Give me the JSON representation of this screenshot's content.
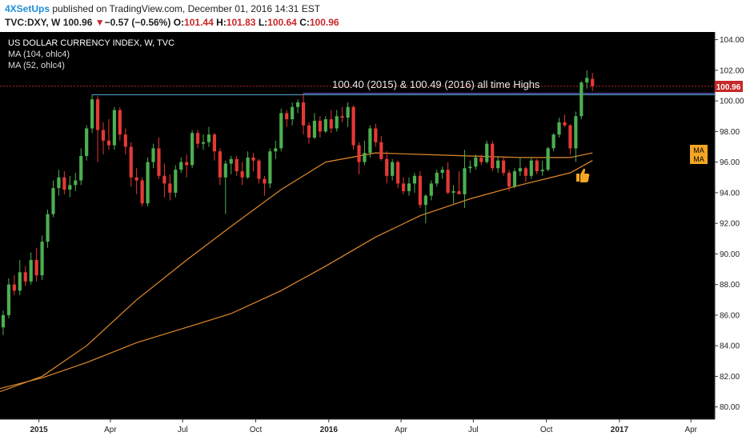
{
  "header": {
    "author": "4XSetUps",
    "published_text": "published on TradingView.com, December 01, 2016 14:31 EST",
    "symbol": "TVC:DXY, W",
    "last": "100.96",
    "change_arrow": "▼",
    "change": "−0.57 (−0.56%)",
    "open_label": "O:",
    "open": "101.44",
    "high_label": "H:",
    "high": "101.83",
    "low_label": "L:",
    "low": "100.64",
    "close_label": "C:",
    "close": "100.96"
  },
  "legend": {
    "title": "US DOLLAR CURRENCY INDEX, W, TVC",
    "ma1": "MA (104, ohlc4)",
    "ma2": "MA (52, ohlc4)"
  },
  "annotation": "100.40 (2015) & 100.49 (2016) all time Highs",
  "price_tag": "100.96",
  "ma_badges": [
    "MA",
    "MA"
  ],
  "thumbs_icon": "thumbs-up-icon",
  "colors": {
    "background": "#000000",
    "up_candle": "#4caf50",
    "down_candle": "#e53935",
    "ma_line": "#e08a2c",
    "resistance_line": "#5ab0e6",
    "price_line": "#c62828",
    "accent_orange": "#f5a623"
  },
  "chart_data": {
    "type": "candlestick",
    "title": "US DOLLAR CURRENCY INDEX, W, TVC",
    "interval": "weekly",
    "y_ticks": [
      "80.00",
      "82.00",
      "84.00",
      "86.00",
      "88.00",
      "90.00",
      "92.00",
      "94.00",
      "96.00",
      "98.00",
      "100.00",
      "102.00",
      "104.00"
    ],
    "ylim": [
      79.2,
      104.5
    ],
    "x_labels": [
      "2015",
      "Apr",
      "Jul",
      "Oct",
      "2016",
      "Apr",
      "Jul",
      "Oct",
      "2017",
      "Apr"
    ],
    "x_label_dates": [
      "2015-01-01",
      "2015-04-01",
      "2015-07-01",
      "2015-10-01",
      "2016-01-01",
      "2016-04-01",
      "2016-07-01",
      "2016-10-01",
      "2017-01-01",
      "2017-04-01"
    ],
    "xlim": [
      "2014-11-13",
      "2017-05-01"
    ],
    "resistance_levels": [
      100.4,
      100.49
    ],
    "last_price": 100.96,
    "candles": [
      {
        "d": "2014-11-17",
        "o": 85.2,
        "h": 86.3,
        "l": 84.7,
        "c": 86.0
      },
      {
        "d": "2014-11-24",
        "o": 86.0,
        "h": 88.4,
        "l": 85.8,
        "c": 88.0
      },
      {
        "d": "2014-12-01",
        "o": 88.0,
        "h": 88.6,
        "l": 87.3,
        "c": 87.6
      },
      {
        "d": "2014-12-08",
        "o": 87.6,
        "h": 89.6,
        "l": 87.3,
        "c": 88.8
      },
      {
        "d": "2014-12-15",
        "o": 88.8,
        "h": 89.2,
        "l": 87.9,
        "c": 88.2
      },
      {
        "d": "2014-12-22",
        "o": 88.2,
        "h": 90.1,
        "l": 88.0,
        "c": 89.6
      },
      {
        "d": "2014-12-29",
        "o": 89.6,
        "h": 90.4,
        "l": 88.2,
        "c": 88.6
      },
      {
        "d": "2015-01-05",
        "o": 88.6,
        "h": 91.2,
        "l": 88.3,
        "c": 90.8
      },
      {
        "d": "2015-01-12",
        "o": 90.8,
        "h": 92.9,
        "l": 90.4,
        "c": 92.6
      },
      {
        "d": "2015-01-19",
        "o": 92.6,
        "h": 94.8,
        "l": 92.4,
        "c": 94.3
      },
      {
        "d": "2015-01-26",
        "o": 94.3,
        "h": 95.5,
        "l": 93.8,
        "c": 95.0
      },
      {
        "d": "2015-02-02",
        "o": 95.0,
        "h": 95.4,
        "l": 93.9,
        "c": 94.2
      },
      {
        "d": "2015-02-09",
        "o": 94.2,
        "h": 95.1,
        "l": 93.7,
        "c": 94.5
      },
      {
        "d": "2015-02-16",
        "o": 94.5,
        "h": 95.3,
        "l": 94.1,
        "c": 94.8
      },
      {
        "d": "2015-02-23",
        "o": 94.8,
        "h": 96.9,
        "l": 94.5,
        "c": 96.4
      },
      {
        "d": "2015-03-02",
        "o": 96.4,
        "h": 98.4,
        "l": 96.1,
        "c": 98.2
      },
      {
        "d": "2015-03-09",
        "o": 98.2,
        "h": 100.4,
        "l": 97.9,
        "c": 100.1
      },
      {
        "d": "2015-03-16",
        "o": 100.1,
        "h": 100.3,
        "l": 96.0,
        "c": 98.1
      },
      {
        "d": "2015-03-23",
        "o": 98.1,
        "h": 98.6,
        "l": 96.5,
        "c": 97.4
      },
      {
        "d": "2015-03-30",
        "o": 97.4,
        "h": 98.8,
        "l": 96.8,
        "c": 97.1
      },
      {
        "d": "2015-04-06",
        "o": 97.1,
        "h": 99.6,
        "l": 96.8,
        "c": 99.4
      },
      {
        "d": "2015-04-13",
        "o": 99.4,
        "h": 99.6,
        "l": 97.4,
        "c": 97.8
      },
      {
        "d": "2015-04-20",
        "o": 97.8,
        "h": 98.2,
        "l": 96.5,
        "c": 97.0
      },
      {
        "d": "2015-04-27",
        "o": 97.0,
        "h": 97.3,
        "l": 94.4,
        "c": 95.0
      },
      {
        "d": "2015-05-04",
        "o": 95.0,
        "h": 95.6,
        "l": 93.9,
        "c": 94.8
      },
      {
        "d": "2015-05-11",
        "o": 94.8,
        "h": 95.0,
        "l": 93.1,
        "c": 93.3
      },
      {
        "d": "2015-05-18",
        "o": 93.3,
        "h": 96.3,
        "l": 93.1,
        "c": 96.0
      },
      {
        "d": "2015-05-25",
        "o": 96.0,
        "h": 97.2,
        "l": 95.6,
        "c": 96.9
      },
      {
        "d": "2015-06-01",
        "o": 96.9,
        "h": 97.6,
        "l": 94.9,
        "c": 95.1
      },
      {
        "d": "2015-06-08",
        "o": 95.1,
        "h": 95.9,
        "l": 93.7,
        "c": 94.6
      },
      {
        "d": "2015-06-15",
        "o": 94.6,
        "h": 95.2,
        "l": 93.5,
        "c": 94.0
      },
      {
        "d": "2015-06-22",
        "o": 94.0,
        "h": 95.8,
        "l": 93.7,
        "c": 95.5
      },
      {
        "d": "2015-06-29",
        "o": 95.5,
        "h": 96.3,
        "l": 95.3,
        "c": 96.0
      },
      {
        "d": "2015-07-06",
        "o": 96.0,
        "h": 96.5,
        "l": 95.0,
        "c": 95.8
      },
      {
        "d": "2015-07-13",
        "o": 95.8,
        "h": 98.1,
        "l": 95.6,
        "c": 97.9
      },
      {
        "d": "2015-07-20",
        "o": 97.9,
        "h": 98.1,
        "l": 96.9,
        "c": 97.2
      },
      {
        "d": "2015-07-27",
        "o": 97.2,
        "h": 97.8,
        "l": 96.8,
        "c": 97.3
      },
      {
        "d": "2015-08-03",
        "o": 97.3,
        "h": 98.3,
        "l": 97.0,
        "c": 97.8
      },
      {
        "d": "2015-08-10",
        "o": 97.8,
        "h": 97.9,
        "l": 96.1,
        "c": 96.7
      },
      {
        "d": "2015-08-17",
        "o": 96.7,
        "h": 96.9,
        "l": 94.5,
        "c": 95.0
      },
      {
        "d": "2015-08-24",
        "o": 95.0,
        "h": 96.1,
        "l": 92.6,
        "c": 95.9
      },
      {
        "d": "2015-08-31",
        "o": 95.9,
        "h": 96.4,
        "l": 95.2,
        "c": 96.2
      },
      {
        "d": "2015-09-07",
        "o": 96.2,
        "h": 96.4,
        "l": 95.1,
        "c": 95.4
      },
      {
        "d": "2015-09-14",
        "o": 95.4,
        "h": 96.0,
        "l": 94.5,
        "c": 95.0
      },
      {
        "d": "2015-09-21",
        "o": 95.0,
        "h": 96.7,
        "l": 94.9,
        "c": 96.3
      },
      {
        "d": "2015-09-28",
        "o": 96.3,
        "h": 96.6,
        "l": 95.4,
        "c": 96.1
      },
      {
        "d": "2015-10-05",
        "o": 96.1,
        "h": 96.2,
        "l": 94.6,
        "c": 94.9
      },
      {
        "d": "2015-10-12",
        "o": 94.9,
        "h": 95.1,
        "l": 93.8,
        "c": 94.6
      },
      {
        "d": "2015-10-19",
        "o": 94.6,
        "h": 96.9,
        "l": 94.3,
        "c": 96.7
      },
      {
        "d": "2015-10-26",
        "o": 96.7,
        "h": 97.4,
        "l": 96.2,
        "c": 96.9
      },
      {
        "d": "2015-11-02",
        "o": 96.9,
        "h": 99.5,
        "l": 96.7,
        "c": 99.2
      },
      {
        "d": "2015-11-09",
        "o": 99.2,
        "h": 99.4,
        "l": 98.3,
        "c": 98.8
      },
      {
        "d": "2015-11-16",
        "o": 98.8,
        "h": 99.9,
        "l": 98.4,
        "c": 99.6
      },
      {
        "d": "2015-11-23",
        "o": 99.6,
        "h": 100.1,
        "l": 99.2,
        "c": 99.9
      },
      {
        "d": "2015-11-30",
        "o": 99.9,
        "h": 100.5,
        "l": 97.8,
        "c": 98.4
      },
      {
        "d": "2015-12-07",
        "o": 98.4,
        "h": 98.6,
        "l": 97.2,
        "c": 97.6
      },
      {
        "d": "2015-12-14",
        "o": 97.6,
        "h": 99.2,
        "l": 97.5,
        "c": 98.7
      },
      {
        "d": "2015-12-21",
        "o": 98.7,
        "h": 99.0,
        "l": 97.6,
        "c": 98.0
      },
      {
        "d": "2015-12-28",
        "o": 98.0,
        "h": 99.0,
        "l": 97.9,
        "c": 98.8
      },
      {
        "d": "2016-01-04",
        "o": 98.8,
        "h": 99.4,
        "l": 97.9,
        "c": 98.2
      },
      {
        "d": "2016-01-11",
        "o": 98.2,
        "h": 99.4,
        "l": 98.0,
        "c": 99.0
      },
      {
        "d": "2016-01-18",
        "o": 99.0,
        "h": 99.6,
        "l": 98.6,
        "c": 98.9
      },
      {
        "d": "2016-01-25",
        "o": 98.9,
        "h": 99.9,
        "l": 98.3,
        "c": 99.6
      },
      {
        "d": "2016-02-01",
        "o": 99.6,
        "h": 99.7,
        "l": 96.8,
        "c": 97.1
      },
      {
        "d": "2016-02-08",
        "o": 97.1,
        "h": 97.3,
        "l": 95.2,
        "c": 96.0
      },
      {
        "d": "2016-02-15",
        "o": 96.0,
        "h": 97.4,
        "l": 95.8,
        "c": 96.6
      },
      {
        "d": "2016-02-22",
        "o": 96.6,
        "h": 98.4,
        "l": 96.3,
        "c": 98.2
      },
      {
        "d": "2016-02-29",
        "o": 98.2,
        "h": 98.5,
        "l": 97.0,
        "c": 97.3
      },
      {
        "d": "2016-03-07",
        "o": 97.3,
        "h": 97.7,
        "l": 96.1,
        "c": 96.2
      },
      {
        "d": "2016-03-14",
        "o": 96.2,
        "h": 96.7,
        "l": 94.6,
        "c": 95.1
      },
      {
        "d": "2016-03-21",
        "o": 95.1,
        "h": 96.2,
        "l": 94.8,
        "c": 96.0
      },
      {
        "d": "2016-03-28",
        "o": 96.0,
        "h": 96.1,
        "l": 94.3,
        "c": 94.6
      },
      {
        "d": "2016-04-04",
        "o": 94.6,
        "h": 95.0,
        "l": 93.9,
        "c": 94.1
      },
      {
        "d": "2016-04-11",
        "o": 94.1,
        "h": 95.0,
        "l": 93.8,
        "c": 94.6
      },
      {
        "d": "2016-04-18",
        "o": 94.6,
        "h": 95.3,
        "l": 94.0,
        "c": 95.1
      },
      {
        "d": "2016-04-25",
        "o": 95.1,
        "h": 95.4,
        "l": 93.0,
        "c": 93.2
      },
      {
        "d": "2016-05-02",
        "o": 93.2,
        "h": 93.9,
        "l": 92.0,
        "c": 93.8
      },
      {
        "d": "2016-05-09",
        "o": 93.8,
        "h": 94.8,
        "l": 93.5,
        "c": 94.6
      },
      {
        "d": "2016-05-16",
        "o": 94.6,
        "h": 95.5,
        "l": 94.4,
        "c": 95.3
      },
      {
        "d": "2016-05-23",
        "o": 95.3,
        "h": 95.7,
        "l": 94.9,
        "c": 95.5
      },
      {
        "d": "2016-05-30",
        "o": 95.5,
        "h": 96.0,
        "l": 93.9,
        "c": 94.0
      },
      {
        "d": "2016-06-06",
        "o": 94.0,
        "h": 94.5,
        "l": 93.3,
        "c": 94.1
      },
      {
        "d": "2016-06-13",
        "o": 94.1,
        "h": 95.4,
        "l": 93.9,
        "c": 93.9
      },
      {
        "d": "2016-06-20",
        "o": 93.9,
        "h": 96.8,
        "l": 93.0,
        "c": 95.6
      },
      {
        "d": "2016-06-27",
        "o": 95.6,
        "h": 96.1,
        "l": 95.3,
        "c": 95.7
      },
      {
        "d": "2016-07-04",
        "o": 95.7,
        "h": 96.5,
        "l": 95.5,
        "c": 96.3
      },
      {
        "d": "2016-07-11",
        "o": 96.3,
        "h": 96.5,
        "l": 95.8,
        "c": 96.0
      },
      {
        "d": "2016-07-18",
        "o": 96.0,
        "h": 97.4,
        "l": 95.9,
        "c": 97.2
      },
      {
        "d": "2016-07-25",
        "o": 97.2,
        "h": 97.4,
        "l": 95.4,
        "c": 95.6
      },
      {
        "d": "2016-08-01",
        "o": 95.6,
        "h": 96.4,
        "l": 95.3,
        "c": 96.1
      },
      {
        "d": "2016-08-08",
        "o": 96.1,
        "h": 96.3,
        "l": 95.1,
        "c": 95.3
      },
      {
        "d": "2016-08-15",
        "o": 95.3,
        "h": 95.5,
        "l": 94.1,
        "c": 94.4
      },
      {
        "d": "2016-08-22",
        "o": 94.4,
        "h": 95.6,
        "l": 94.3,
        "c": 95.4
      },
      {
        "d": "2016-08-29",
        "o": 95.4,
        "h": 96.3,
        "l": 95.1,
        "c": 95.6
      },
      {
        "d": "2016-09-05",
        "o": 95.6,
        "h": 95.7,
        "l": 94.7,
        "c": 95.1
      },
      {
        "d": "2016-09-12",
        "o": 95.1,
        "h": 96.3,
        "l": 94.9,
        "c": 96.1
      },
      {
        "d": "2016-09-19",
        "o": 96.1,
        "h": 96.2,
        "l": 95.2,
        "c": 95.4
      },
      {
        "d": "2016-09-26",
        "o": 95.4,
        "h": 96.1,
        "l": 95.1,
        "c": 95.5
      },
      {
        "d": "2016-10-03",
        "o": 95.5,
        "h": 97.0,
        "l": 95.4,
        "c": 96.9
      },
      {
        "d": "2016-10-10",
        "o": 96.9,
        "h": 97.9,
        "l": 96.7,
        "c": 97.8
      },
      {
        "d": "2016-10-17",
        "o": 97.8,
        "h": 98.9,
        "l": 97.6,
        "c": 98.6
      },
      {
        "d": "2016-10-24",
        "o": 98.6,
        "h": 99.1,
        "l": 98.3,
        "c": 98.4
      },
      {
        "d": "2016-10-31",
        "o": 98.4,
        "h": 98.5,
        "l": 96.5,
        "c": 96.9
      },
      {
        "d": "2016-11-07",
        "o": 96.9,
        "h": 99.3,
        "l": 96.0,
        "c": 99.0
      },
      {
        "d": "2016-11-14",
        "o": 99.0,
        "h": 101.3,
        "l": 98.8,
        "c": 101.2
      },
      {
        "d": "2016-11-21",
        "o": 101.2,
        "h": 102.0,
        "l": 100.8,
        "c": 101.5
      },
      {
        "d": "2016-11-28",
        "o": 101.44,
        "h": 101.83,
        "l": 100.64,
        "c": 100.96
      }
    ],
    "ma_104": [
      {
        "d": "2014-11-13",
        "v": 81.0
      },
      {
        "d": "2015-01-05",
        "v": 82.0
      },
      {
        "d": "2015-03-02",
        "v": 84.0
      },
      {
        "d": "2015-05-04",
        "v": 87.0
      },
      {
        "d": "2015-07-06",
        "v": 89.6
      },
      {
        "d": "2015-08-31",
        "v": 91.8
      },
      {
        "d": "2015-11-02",
        "v": 94.2
      },
      {
        "d": "2015-12-28",
        "v": 96.0
      },
      {
        "d": "2016-02-29",
        "v": 96.6
      },
      {
        "d": "2016-04-25",
        "v": 96.5
      },
      {
        "d": "2016-06-27",
        "v": 96.4
      },
      {
        "d": "2016-08-29",
        "v": 96.3
      },
      {
        "d": "2016-10-31",
        "v": 96.3
      },
      {
        "d": "2016-11-28",
        "v": 96.6
      }
    ],
    "ma_52": [
      {
        "d": "2014-11-13",
        "v": 81.2
      },
      {
        "d": "2015-01-05",
        "v": 81.9
      },
      {
        "d": "2015-03-02",
        "v": 82.9
      },
      {
        "d": "2015-05-04",
        "v": 84.2
      },
      {
        "d": "2015-07-06",
        "v": 85.2
      },
      {
        "d": "2015-08-31",
        "v": 86.1
      },
      {
        "d": "2015-11-02",
        "v": 87.6
      },
      {
        "d": "2015-12-28",
        "v": 89.2
      },
      {
        "d": "2016-02-29",
        "v": 91.1
      },
      {
        "d": "2016-04-25",
        "v": 92.5
      },
      {
        "d": "2016-06-27",
        "v": 93.6
      },
      {
        "d": "2016-08-29",
        "v": 94.5
      },
      {
        "d": "2016-10-31",
        "v": 95.3
      },
      {
        "d": "2016-11-28",
        "v": 96.1
      }
    ]
  }
}
